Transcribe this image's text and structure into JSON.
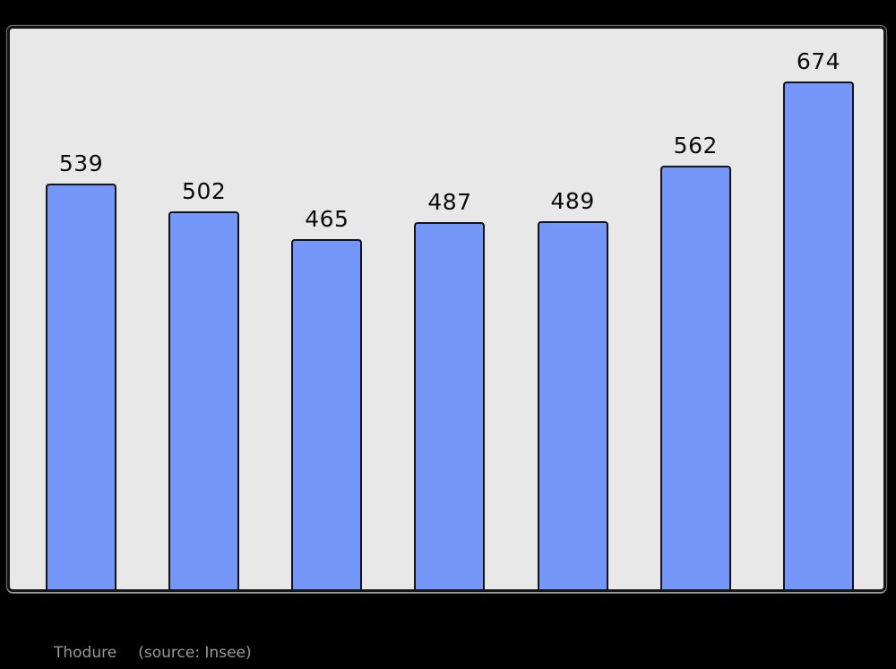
{
  "chart_data": {
    "type": "bar",
    "values": [
      539,
      502,
      465,
      487,
      489,
      562,
      674
    ],
    "bar_labels": [
      "539",
      "502",
      "465",
      "487",
      "489",
      "562",
      "674"
    ],
    "title": "",
    "xlabel": "",
    "ylabel": "",
    "ylim": [
      0,
      744
    ],
    "grid": false,
    "legend": false,
    "bar_color": "#7396f8",
    "bar_border_color": "#141414",
    "plot_bg": "#e8e8e8",
    "page_bg": "#000000",
    "label_color": "#0b0b0b"
  },
  "caption": {
    "commune": "Thodure",
    "source": "(source: Insee)",
    "color": "#999999"
  }
}
